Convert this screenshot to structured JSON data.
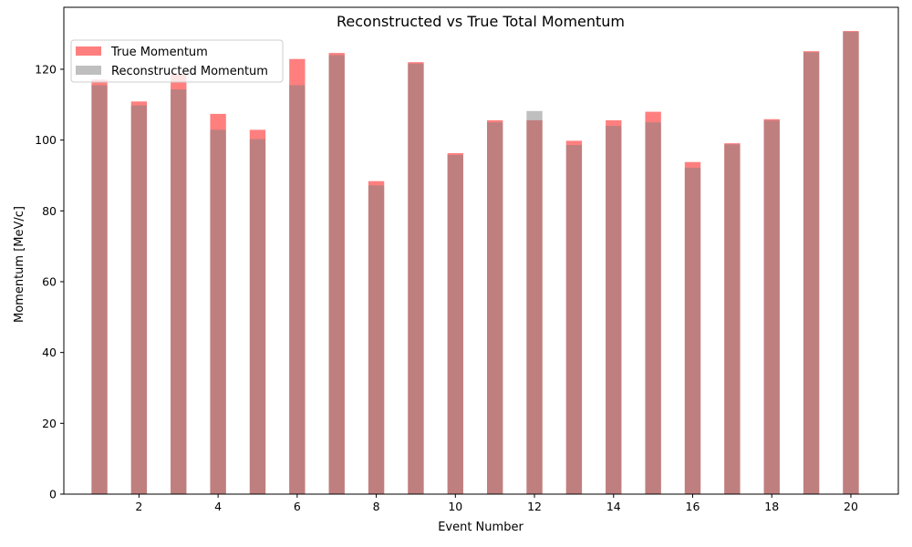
{
  "chart_data": {
    "type": "bar",
    "title": "Reconstructed vs True Total Momentum",
    "xlabel": "Event Number",
    "ylabel": "Momentum [MeV/c]",
    "x": [
      1,
      2,
      3,
      4,
      5,
      6,
      7,
      8,
      9,
      10,
      11,
      12,
      13,
      14,
      15,
      16,
      17,
      18,
      19,
      20
    ],
    "xlim": [
      0.1,
      21.2
    ],
    "ylim": [
      0,
      137.5
    ],
    "xticks": [
      2,
      4,
      6,
      8,
      10,
      12,
      14,
      16,
      18,
      20
    ],
    "yticks": [
      0,
      20,
      40,
      60,
      80,
      100,
      120
    ],
    "xtick_labels": [
      "2",
      "4",
      "6",
      "8",
      "10",
      "12",
      "14",
      "16",
      "18",
      "20"
    ],
    "ytick_labels": [
      "0",
      "20",
      "40",
      "60",
      "80",
      "100",
      "120"
    ],
    "bar_width": 0.4,
    "grid": false,
    "legend_position": "upper left",
    "series": [
      {
        "name": "True Momentum",
        "color": "#ff0000",
        "alpha": 0.5,
        "values": [
          117.1,
          110.9,
          118.6,
          107.4,
          102.9,
          122.9,
          124.6,
          88.4,
          122.0,
          96.3,
          105.6,
          105.6,
          99.8,
          105.6,
          108.0,
          93.8,
          99.1,
          105.9,
          125.1,
          130.8
        ]
      },
      {
        "name": "Reconstructed Momentum",
        "color": "#808080",
        "alpha": 0.5,
        "values": [
          115.5,
          109.8,
          114.3,
          102.9,
          100.3,
          115.5,
          124.0,
          87.2,
          121.6,
          95.8,
          105.0,
          108.2,
          98.6,
          104.0,
          105.0,
          92.2,
          98.8,
          105.5,
          124.8,
          130.6
        ]
      }
    ]
  }
}
